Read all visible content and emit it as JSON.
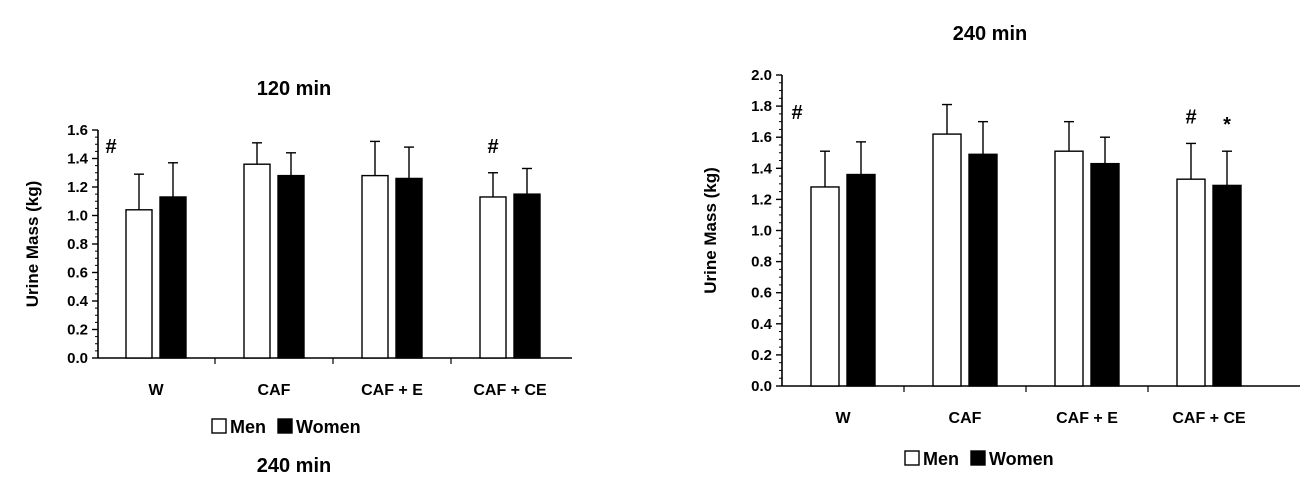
{
  "chart_data": [
    {
      "type": "bar",
      "title": "120 min",
      "ylabel": "Urine Mass (kg)",
      "xlabel": "",
      "ylim": [
        0,
        1.6
      ],
      "ytick_labels": [
        "0.0",
        "0.2",
        "0.4",
        "0.6",
        "0.8",
        "1.0",
        "1.2",
        "1.4",
        "1.6"
      ],
      "categories": [
        "W",
        "CAF",
        "CAF + E",
        "CAF + CE"
      ],
      "series": [
        {
          "name": "Men",
          "fill": "#ffffff",
          "values": [
            1.04,
            1.36,
            1.28,
            1.13
          ],
          "errors": [
            0.25,
            0.15,
            0.24,
            0.17
          ]
        },
        {
          "name": "Women",
          "fill": "#000000",
          "values": [
            1.13,
            1.28,
            1.26,
            1.15
          ],
          "errors": [
            0.24,
            0.16,
            0.22,
            0.18
          ]
        }
      ],
      "annotations": [
        {
          "category": 0,
          "series": 0,
          "text": "#"
        },
        {
          "category": 3,
          "series": 0,
          "text": "#"
        }
      ],
      "legend": "bottom",
      "caption": "240 min"
    },
    {
      "type": "bar",
      "title": "240 min",
      "ylabel": "Urine Mass (kg)",
      "xlabel": "",
      "ylim": [
        0,
        2.0
      ],
      "ytick_labels": [
        "0.0",
        "0.2",
        "0.4",
        "0.6",
        "0.8",
        "1.0",
        "1.2",
        "1.4",
        "1.6",
        "1.8",
        "2.0"
      ],
      "categories": [
        "W",
        "CAF",
        "CAF + E",
        "CAF + CE"
      ],
      "series": [
        {
          "name": "Men",
          "fill": "#ffffff",
          "values": [
            1.28,
            1.62,
            1.51,
            1.33
          ],
          "errors": [
            0.23,
            0.19,
            0.19,
            0.23
          ]
        },
        {
          "name": "Women",
          "fill": "#000000",
          "values": [
            1.36,
            1.49,
            1.43,
            1.29
          ],
          "errors": [
            0.21,
            0.21,
            0.17,
            0.22
          ]
        }
      ],
      "annotations": [
        {
          "category": 0,
          "series": 0,
          "text": "#"
        },
        {
          "category": 3,
          "series": 0,
          "text": "#"
        },
        {
          "category": 3,
          "series": 1,
          "text": "*"
        }
      ],
      "legend": "bottom",
      "caption": ""
    }
  ]
}
